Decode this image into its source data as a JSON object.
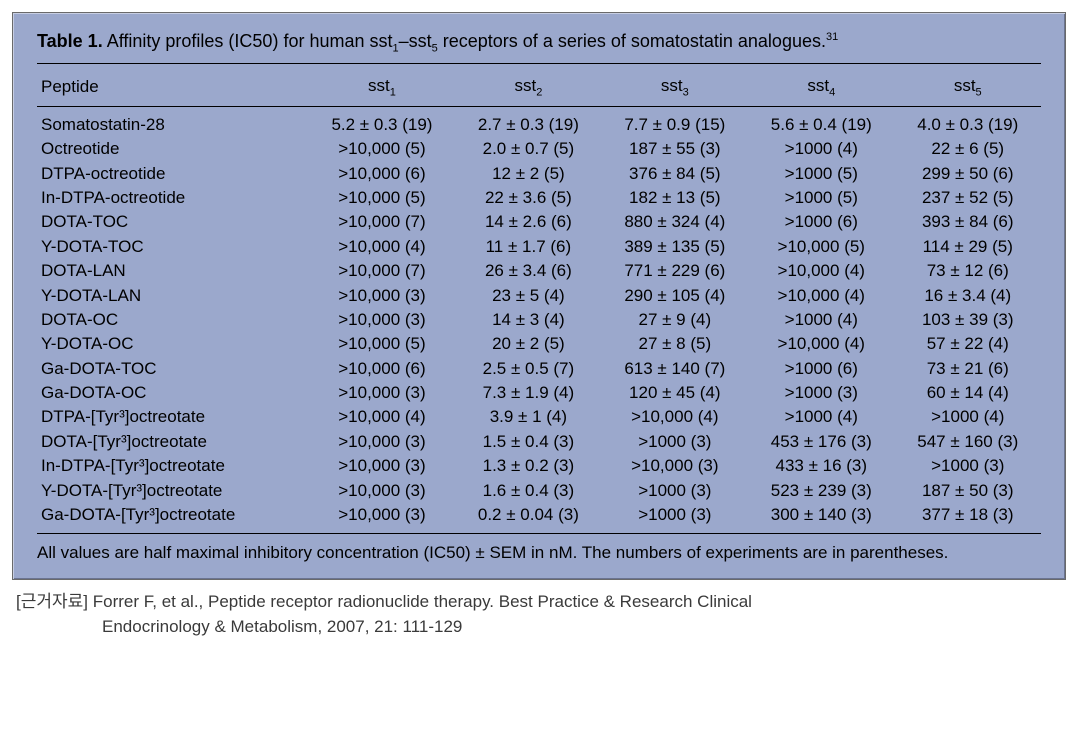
{
  "table": {
    "title_prefix": "Table 1.",
    "title_rest": " Affinity profiles (IC50) for human sst",
    "title_sub1": "1",
    "title_dash": "–sst",
    "title_sub5": "5",
    "title_end": " receptors of a series of somatostatin analogues.",
    "title_refnum": "31",
    "columns": [
      "Peptide",
      "sst",
      "sst",
      "sst",
      "sst",
      "sst"
    ],
    "column_subs": [
      "",
      "1",
      "2",
      "3",
      "4",
      "5"
    ],
    "rows": [
      {
        "peptide": "Somatostatin-28",
        "c": [
          "5.2 ± 0.3 (19)",
          "2.7 ± 0.3 (19)",
          "7.7 ± 0.9 (15)",
          "5.6 ± 0.4 (19)",
          "4.0 ± 0.3 (19)"
        ]
      },
      {
        "peptide": "Octreotide",
        "c": [
          ">10,000 (5)",
          "2.0 ± 0.7 (5)",
          "187 ± 55 (3)",
          ">1000 (4)",
          "22 ± 6 (5)"
        ]
      },
      {
        "peptide": "DTPA-octreotide",
        "c": [
          ">10,000 (6)",
          "12 ± 2 (5)",
          "376 ± 84 (5)",
          ">1000 (5)",
          "299 ± 50 (6)"
        ]
      },
      {
        "peptide": "In-DTPA-octreotide",
        "c": [
          ">10,000 (5)",
          "22 ± 3.6 (5)",
          "182 ± 13 (5)",
          ">1000 (5)",
          "237 ± 52 (5)"
        ]
      },
      {
        "peptide": "DOTA-TOC",
        "c": [
          ">10,000 (7)",
          "14 ± 2.6 (6)",
          "880 ± 324 (4)",
          ">1000 (6)",
          "393 ± 84 (6)"
        ]
      },
      {
        "peptide": "Y-DOTA-TOC",
        "c": [
          ">10,000 (4)",
          "11 ± 1.7 (6)",
          "389 ± 135 (5)",
          ">10,000 (5)",
          "114 ± 29 (5)"
        ]
      },
      {
        "peptide": "DOTA-LAN",
        "c": [
          ">10,000 (7)",
          "26 ± 3.4 (6)",
          "771 ± 229 (6)",
          ">10,000 (4)",
          "73 ± 12 (6)"
        ]
      },
      {
        "peptide": "Y-DOTA-LAN",
        "c": [
          ">10,000 (3)",
          "23 ± 5 (4)",
          "290 ± 105 (4)",
          ">10,000 (4)",
          "16 ± 3.4 (4)"
        ]
      },
      {
        "peptide": "DOTA-OC",
        "c": [
          ">10,000 (3)",
          "14 ± 3 (4)",
          "27 ± 9 (4)",
          ">1000 (4)",
          "103 ± 39 (3)"
        ]
      },
      {
        "peptide": "Y-DOTA-OC",
        "c": [
          ">10,000 (5)",
          "20 ± 2 (5)",
          "27 ± 8 (5)",
          ">10,000 (4)",
          "57 ± 22 (4)"
        ]
      },
      {
        "peptide": "Ga-DOTA-TOC",
        "c": [
          ">10,000 (6)",
          "2.5 ± 0.5 (7)",
          "613 ± 140 (7)",
          ">1000 (6)",
          "73 ± 21 (6)"
        ]
      },
      {
        "peptide": "Ga-DOTA-OC",
        "c": [
          ">10,000 (3)",
          "7.3 ± 1.9 (4)",
          "120 ± 45 (4)",
          ">1000 (3)",
          "60 ± 14 (4)"
        ]
      },
      {
        "peptide": "DTPA-[Tyr³]octreotate",
        "c": [
          ">10,000 (4)",
          "3.9 ± 1 (4)",
          ">10,000 (4)",
          ">1000 (4)",
          ">1000 (4)"
        ]
      },
      {
        "peptide": "DOTA-[Tyr³]octreotate",
        "c": [
          ">10,000 (3)",
          "1.5 ± 0.4 (3)",
          ">1000 (3)",
          "453 ± 176 (3)",
          "547 ± 160 (3)"
        ]
      },
      {
        "peptide": "In-DTPA-[Tyr³]octreotate",
        "c": [
          ">10,000 (3)",
          "1.3 ± 0.2 (3)",
          ">10,000 (3)",
          "433 ± 16 (3)",
          ">1000 (3)"
        ]
      },
      {
        "peptide": "Y-DOTA-[Tyr³]octreotate",
        "c": [
          ">10,000 (3)",
          "1.6 ± 0.4 (3)",
          ">1000 (3)",
          "523 ± 239 (3)",
          "187 ± 50 (3)"
        ]
      },
      {
        "peptide": "Ga-DOTA-[Tyr³]octreotate",
        "c": [
          ">10,000 (3)",
          "0.2 ± 0.04 (3)",
          ">1000 (3)",
          "300 ± 140 (3)",
          "377 ± 18 (3)"
        ]
      }
    ],
    "footnote": "All values are half maximal inhibitory concentration (IC50) ± SEM in nM. The numbers of experiments are in parentheses.",
    "background_color": "#9ba8cc",
    "rule_color": "#000000",
    "font_size": 17
  },
  "citation": {
    "label": "[근거자료]",
    "line1": "Forrer F, et al., Peptide receptor radionuclide therapy. Best Practice & Research Clinical",
    "line2": "Endocrinology & Metabolism, 2007, 21: 111-129"
  }
}
